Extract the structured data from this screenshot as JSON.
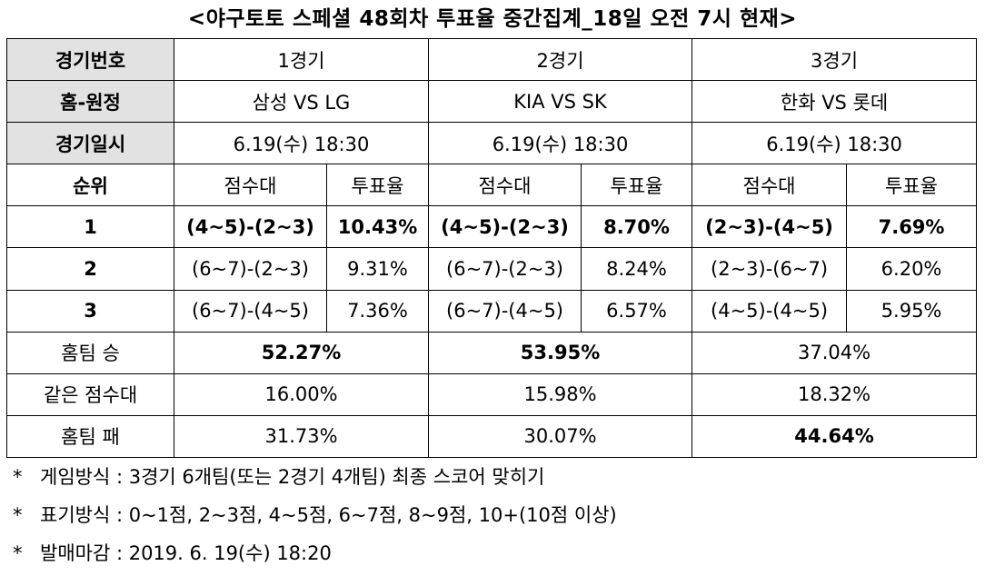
{
  "title": "<야구토토 스페셜 48회차 투표율 중간집계_18일 오전 7시 현재>",
  "labels": {
    "game_no": "경기번호",
    "home_away": "홈-원정",
    "game_date": "경기일시",
    "rank": "순위",
    "score_range": "점수대",
    "vote_rate": "투표율",
    "home_win": "홈팀 승",
    "same_score": "같은 점수대",
    "home_loss": "홈팀 패"
  },
  "games": [
    {
      "name": "1경기",
      "matchup": "삼성 VS LG",
      "datetime": "6.19(수) 18:30",
      "ranks": [
        {
          "score": "(4~5)-(2~3)",
          "rate": "10.43%"
        },
        {
          "score": "(6~7)-(2~3)",
          "rate": "9.31%"
        },
        {
          "score": "(6~7)-(4~5)",
          "rate": "7.36%"
        }
      ],
      "home_win": "52.27%",
      "same_score": "16.00%",
      "home_loss": "31.73%"
    },
    {
      "name": "2경기",
      "matchup": "KIA VS SK",
      "datetime": "6.19(수) 18:30",
      "ranks": [
        {
          "score": "(4~5)-(2~3)",
          "rate": "8.70%"
        },
        {
          "score": "(6~7)-(2~3)",
          "rate": "8.24%"
        },
        {
          "score": "(6~7)-(4~5)",
          "rate": "6.57%"
        }
      ],
      "home_win": "53.95%",
      "same_score": "15.98%",
      "home_loss": "30.07%"
    },
    {
      "name": "3경기",
      "matchup": "한화 VS 롯데",
      "datetime": "6.19(수) 18:30",
      "ranks": [
        {
          "score": "(2~3)-(4~5)",
          "rate": "7.69%"
        },
        {
          "score": "(2~3)-(6~7)",
          "rate": "6.20%"
        },
        {
          "score": "(4~5)-(4~5)",
          "rate": "5.95%"
        }
      ],
      "home_win": "37.04%",
      "same_score": "18.32%",
      "home_loss": "44.64%"
    }
  ],
  "rank_numbers": [
    "1",
    "2",
    "3"
  ],
  "notes": [
    {
      "star": "*",
      "text": "게임방식 : 3경기 6개팀(또는 2경기 4개팀) 최종 스코어 맞히기"
    },
    {
      "star": "*",
      "text": "표기방식 : 0~1점, 2~3점, 4~5점, 6~7점, 8~9점, 10+(10점 이상)"
    },
    {
      "star": "*",
      "text": "발매마감 : 2019. 6. 19(수) 18:20"
    }
  ]
}
